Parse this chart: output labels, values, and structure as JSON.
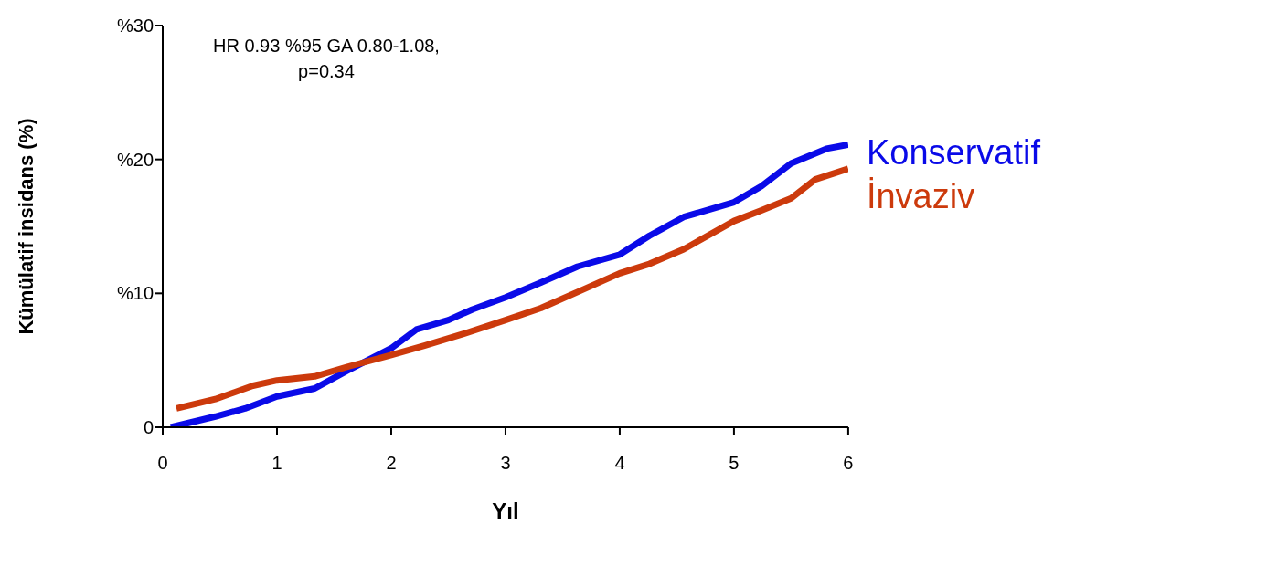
{
  "chart_data": {
    "type": "line",
    "xlabel": "Yıl",
    "ylabel": "Kümülatif insidans (%)",
    "annotations": [
      "HR 0.93 %95 GA 0.80-1.08,\np=0.34"
    ],
    "xlim": [
      0,
      6
    ],
    "xticks": [
      0,
      1,
      2,
      3,
      4,
      5,
      6
    ],
    "ylim": [
      0,
      30
    ],
    "yticks": [
      0,
      {
        "value": 10,
        "label": "%10"
      },
      {
        "value": 20,
        "label": "%20"
      },
      {
        "value": 30,
        "label": "%30"
      }
    ],
    "grid": false,
    "legend": "right",
    "marker": "none",
    "line_style": "solid",
    "series": [
      {
        "name": "Konservatif",
        "color": "#0a0ae8",
        "x": [
          0.07,
          0.46,
          0.72,
          1,
          1.33,
          1.61,
          2,
          2.22,
          2.5,
          2.71,
          3,
          3.31,
          3.63,
          4,
          4.26,
          4.56,
          5,
          5.24,
          5.5,
          5.81,
          6
        ],
        "values": [
          0,
          0.8,
          1.4,
          2.3,
          2.9,
          4.2,
          5.9,
          7.3,
          8.0,
          8.8,
          9.7,
          10.8,
          12.0,
          12.9,
          14.3,
          15.7,
          16.8,
          18.0,
          19.7,
          20.8,
          21.1
        ]
      },
      {
        "name": "İnvaziv",
        "color": "#cc3a0c",
        "x": [
          0.12,
          0.46,
          0.79,
          1,
          1.33,
          1.61,
          2,
          2.29,
          2.64,
          3,
          3.31,
          3.63,
          4,
          4.26,
          4.56,
          5,
          5.24,
          5.5,
          5.71,
          6
        ],
        "values": [
          1.4,
          2.1,
          3.1,
          3.5,
          3.8,
          4.5,
          5.4,
          6.1,
          7.0,
          8.0,
          8.9,
          10.1,
          11.5,
          12.2,
          13.3,
          15.4,
          16.2,
          17.1,
          18.5,
          19.3
        ]
      }
    ]
  }
}
